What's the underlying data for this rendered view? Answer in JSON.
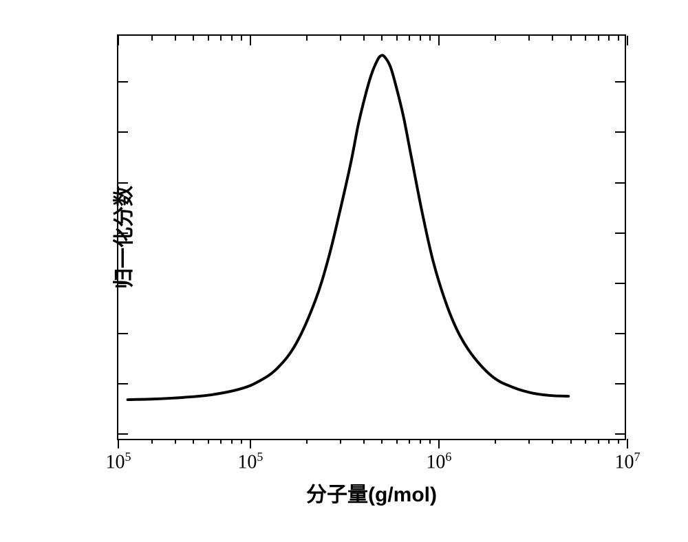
{
  "chart": {
    "type": "line",
    "background_color": "#ffffff",
    "line_color": "#000000",
    "line_width": 4,
    "x_axis": {
      "label": "分子量(g/mol)",
      "scale": "log",
      "label_fontsize": 30,
      "tick_fontsize": 28,
      "min": 4.3,
      "max": 7.0,
      "major_ticks": [
        {
          "log_pos": 4.3,
          "label": "10⁵"
        },
        {
          "log_pos": 5.0,
          "label": "10⁵"
        },
        {
          "log_pos": 6.0,
          "label": "10⁶"
        },
        {
          "log_pos": 7.0,
          "label": "10⁷"
        }
      ],
      "minor_tick_logs": [
        4.477,
        4.602,
        4.699,
        4.778,
        4.845,
        4.903,
        4.954,
        5.301,
        5.477,
        5.602,
        5.699,
        5.778,
        5.845,
        5.903,
        5.954,
        6.301,
        6.477,
        6.602,
        6.699,
        6.778,
        6.845,
        6.903,
        6.954
      ]
    },
    "y_axis": {
      "label": "归一化分数",
      "label_fontsize": 30,
      "min": 0,
      "max": 1.05,
      "major_tick_positions": [
        0.02,
        0.15,
        0.28,
        0.41,
        0.54,
        0.67,
        0.8,
        0.93
      ]
    },
    "curve_data": [
      {
        "x": 4.35,
        "y": 0.102
      },
      {
        "x": 4.5,
        "y": 0.104
      },
      {
        "x": 4.65,
        "y": 0.108
      },
      {
        "x": 4.8,
        "y": 0.115
      },
      {
        "x": 4.95,
        "y": 0.13
      },
      {
        "x": 5.05,
        "y": 0.15
      },
      {
        "x": 5.15,
        "y": 0.185
      },
      {
        "x": 5.25,
        "y": 0.25
      },
      {
        "x": 5.35,
        "y": 0.36
      },
      {
        "x": 5.42,
        "y": 0.47
      },
      {
        "x": 5.48,
        "y": 0.59
      },
      {
        "x": 5.54,
        "y": 0.72
      },
      {
        "x": 5.58,
        "y": 0.82
      },
      {
        "x": 5.62,
        "y": 0.9
      },
      {
        "x": 5.65,
        "y": 0.95
      },
      {
        "x": 5.68,
        "y": 0.985
      },
      {
        "x": 5.7,
        "y": 0.998
      },
      {
        "x": 5.72,
        "y": 0.995
      },
      {
        "x": 5.75,
        "y": 0.97
      },
      {
        "x": 5.78,
        "y": 0.92
      },
      {
        "x": 5.82,
        "y": 0.84
      },
      {
        "x": 5.86,
        "y": 0.74
      },
      {
        "x": 5.92,
        "y": 0.59
      },
      {
        "x": 5.98,
        "y": 0.46
      },
      {
        "x": 6.05,
        "y": 0.35
      },
      {
        "x": 6.12,
        "y": 0.27
      },
      {
        "x": 6.2,
        "y": 0.21
      },
      {
        "x": 6.3,
        "y": 0.16
      },
      {
        "x": 6.4,
        "y": 0.135
      },
      {
        "x": 6.5,
        "y": 0.12
      },
      {
        "x": 6.6,
        "y": 0.113
      },
      {
        "x": 6.7,
        "y": 0.111
      }
    ]
  }
}
